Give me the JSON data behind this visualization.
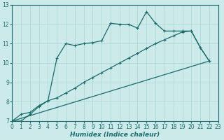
{
  "xlabel": "Humidex (Indice chaleur)",
  "bg_color": "#cceaea",
  "grid_color": "#aad4d4",
  "line_color": "#1a6b6b",
  "xlim": [
    0,
    23
  ],
  "ylim": [
    7,
    13
  ],
  "xticks": [
    0,
    1,
    2,
    3,
    4,
    5,
    6,
    7,
    8,
    9,
    10,
    11,
    12,
    13,
    14,
    15,
    16,
    17,
    18,
    19,
    20,
    21,
    22,
    23
  ],
  "yticks": [
    7,
    8,
    9,
    10,
    11,
    12,
    13
  ],
  "line1_x": [
    0,
    22
  ],
  "line1_y": [
    7.0,
    10.1
  ],
  "line2_x": [
    0,
    1,
    2,
    3,
    4,
    5,
    6,
    7,
    8,
    9,
    10,
    11,
    12,
    13,
    14,
    15,
    16,
    17,
    18,
    19,
    20,
    21,
    22
  ],
  "line2_y": [
    7.0,
    7.0,
    7.35,
    7.75,
    8.05,
    8.2,
    8.45,
    8.7,
    9.0,
    9.25,
    9.5,
    9.75,
    10.0,
    10.25,
    10.5,
    10.75,
    11.0,
    11.2,
    11.4,
    11.6,
    11.65,
    10.8,
    10.1
  ],
  "line3_x": [
    0,
    1,
    2,
    3,
    4,
    5,
    6,
    7,
    8,
    9,
    10,
    11,
    12,
    13,
    14,
    15,
    16,
    17,
    18,
    19,
    20,
    21,
    22
  ],
  "line3_y": [
    7.0,
    7.35,
    7.45,
    7.8,
    8.05,
    10.25,
    11.0,
    10.9,
    11.0,
    11.05,
    11.15,
    12.05,
    12.0,
    12.0,
    11.8,
    12.65,
    12.05,
    11.65,
    11.65,
    11.65,
    11.65,
    10.8,
    10.1
  ]
}
